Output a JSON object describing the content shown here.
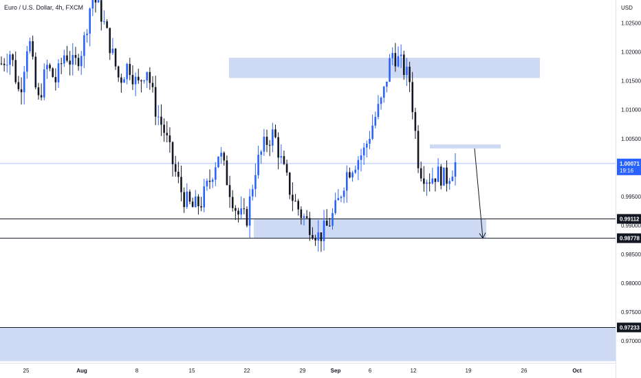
{
  "header": {
    "symbol_title": "Euro / U.S. Dollar, 4h, FXCM"
  },
  "price_axis": {
    "currency": "USD",
    "ticks": [
      "1.02500",
      "1.02000",
      "1.01500",
      "1.01000",
      "1.00500",
      "0.99500",
      "0.99000",
      "0.98500",
      "0.98000",
      "0.97500",
      "0.97000"
    ]
  },
  "time_axis": {
    "ticks": [
      "25",
      "Aug",
      "8",
      "15",
      "22",
      "29",
      "Sep",
      "6",
      "12",
      "19",
      "26",
      "Oct"
    ]
  },
  "current_price": {
    "value": "1.00071",
    "countdown": "19:16"
  },
  "level_labels": [
    "0.99112",
    "0.98778",
    "0.97233"
  ],
  "colors": {
    "up_candle": "#2962ff",
    "down_candle": "#131722",
    "zone_fill": "#c6d2f2",
    "current_line": "#a7c2ff",
    "label_bg": "#131722",
    "current_label_bg": "#2962ff"
  },
  "chart_data": {
    "type": "candlestick",
    "title": "Euro / U.S. Dollar, 4h, FXCM",
    "y_unit": "USD",
    "ylim": [
      0.9662,
      1.029
    ],
    "x_ticks": [
      "25",
      "Aug",
      "8",
      "15",
      "22",
      "29",
      "Sep",
      "6",
      "12",
      "19",
      "26",
      "Oct"
    ],
    "anchor_closes": [
      1.018,
      1.02,
      1.0125,
      1.023,
      1.011,
      1.0175,
      1.015,
      1.02,
      1.0175,
      1.021,
      1.03,
      1.0265,
      1.021,
      1.015,
      1.018,
      1.014,
      1.0175,
      1.01,
      1.006,
      1.0,
      0.995,
      0.993,
      0.994,
      0.998,
      1.003,
      0.997,
      0.992,
      0.991,
      1.0,
      1.004,
      1.006,
      1.0,
      0.995,
      0.992,
      0.99,
      0.988,
      0.99,
      0.9935,
      0.999,
      1.001,
      1.003,
      1.008,
      1.012,
      1.02,
      1.018,
      1.015,
      1.0,
      0.998,
      0.999,
      0.998,
      1.0007
    ],
    "zones": [
      {
        "price_top": 1.019,
        "price_bottom": 1.0155
      },
      {
        "price_top": 1.004,
        "price_bottom": 1.0033
      },
      {
        "price_top": 0.99112,
        "price_bottom": 0.98778
      },
      {
        "price_top": 0.97233,
        "price_bottom": 0.9665
      }
    ],
    "horizontal_levels": [
      0.99112,
      0.98778,
      0.97233
    ],
    "current_price": 1.00071,
    "arrow": {
      "from_price": 1.0033,
      "to_price": 0.98778
    }
  }
}
